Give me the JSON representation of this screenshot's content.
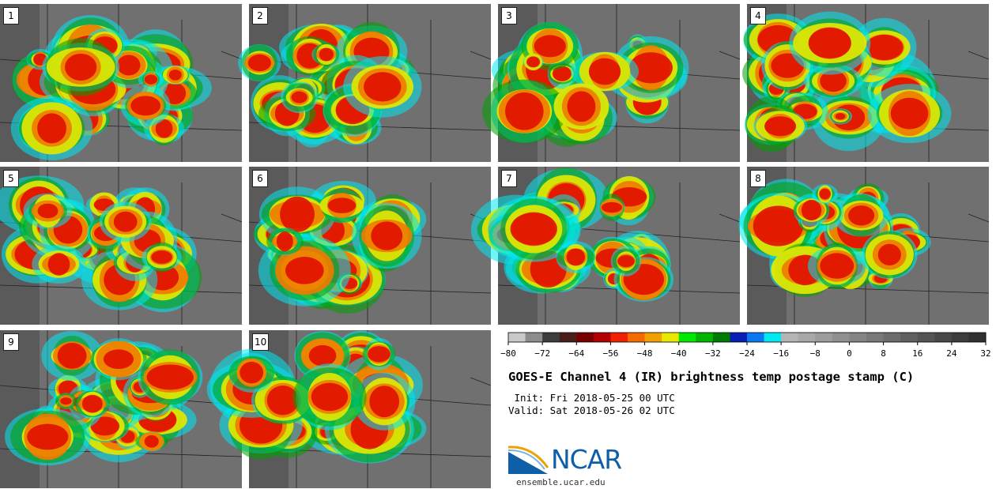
{
  "panels": [
    {
      "label": "1"
    },
    {
      "label": "2"
    },
    {
      "label": "3"
    },
    {
      "label": "4"
    },
    {
      "label": "5"
    },
    {
      "label": "6"
    },
    {
      "label": "7"
    },
    {
      "label": "8"
    },
    {
      "label": "9"
    },
    {
      "label": "10"
    }
  ],
  "colorbar": {
    "colors": [
      "#c8c8c8",
      "#8c8c8c",
      "#3c3c3c",
      "#4b1e1e",
      "#7a0000",
      "#b40000",
      "#f02000",
      "#f56a00",
      "#f0a000",
      "#e8e800",
      "#00e800",
      "#00b400",
      "#007a00",
      "#0a1eb4",
      "#0a78f0",
      "#00e8f0",
      "#b4b4b4",
      "#a8a8a8",
      "#9c9c9c",
      "#909090",
      "#848484",
      "#787878",
      "#6c6c6c",
      "#606060",
      "#545454",
      "#484848",
      "#3c3c3c",
      "#303030"
    ],
    "ticks": [
      "−80",
      "−72",
      "−64",
      "−56",
      "−48",
      "−40",
      "−32",
      "−24",
      "−16",
      "−8",
      "0",
      "8",
      "16",
      "24",
      "32"
    ]
  },
  "title": "GOES-E Channel 4 (IR) brightness temp postage stamp (C)",
  "init": " Init: Fri 2018-05-25 00 UTC",
  "valid": "Valid: Sat 2018-05-26 02 UTC",
  "logo_text": "NCAR",
  "url": "ensemble.ucar.edu"
}
